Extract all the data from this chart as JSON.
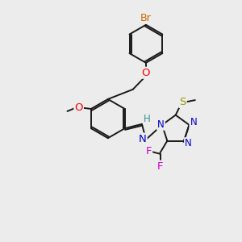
{
  "bg_color": "#ececec",
  "bond_color": "#1a1a1a",
  "bond_width": 1.4,
  "atom_colors": {
    "Br": "#cc6600",
    "O": "#ff0000",
    "N": "#0000cc",
    "S": "#999900",
    "F": "#cc00cc",
    "H": "#3a9090",
    "C": "#1a1a1a"
  },
  "font_size": 8.5
}
